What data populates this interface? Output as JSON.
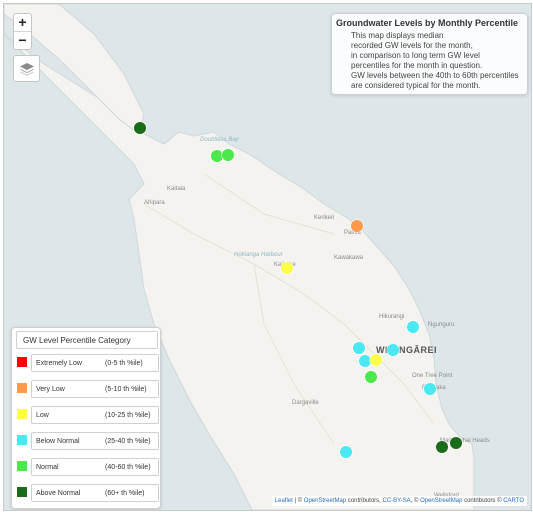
{
  "zoom": {
    "in_label": "+",
    "out_label": "−"
  },
  "layers_icon": "layers-icon",
  "info_box": {
    "title": "Groundwater Levels by Monthly Percentile",
    "lines": [
      "This map displays median",
      "recorded GW levels for the month,",
      "in comparison to long term GW level",
      "percentiles for the month in question.",
      "GW levels between the 40th to 60th percentiles",
      "are considered typical for the month."
    ]
  },
  "legend": {
    "title": "GW Level Percentile Category",
    "items": [
      {
        "name": "Extremely Low",
        "range": "(0-5 th %ile)",
        "color": "#ff0000"
      },
      {
        "name": "Very Low",
        "range": "(5-10 th %ile)",
        "color": "#ff9a4a"
      },
      {
        "name": "Low",
        "range": "(10-25 th %ile)",
        "color": "#ffff4a"
      },
      {
        "name": "Below Normal",
        "range": "(25-40 th %ile)",
        "color": "#4ae8f0"
      },
      {
        "name": "Normal",
        "range": "(40-60 th %ile)",
        "color": "#4ae84a"
      },
      {
        "name": "Above Normal",
        "range": "(60+ th %ile)",
        "color": "#1a6b1a"
      }
    ]
  },
  "places": {
    "doubtless_bay": "Doubtless Bay",
    "kaitaia": "Kaitaia",
    "ahipara": "Ahipara",
    "kerikeri": "Kerikeri",
    "paihia": "Paihia",
    "kawakawa": "Kawakawa",
    "hokianga_harbour": "Hokianga Harbour",
    "kaikohe": "Kaikohe",
    "hikurangi": "Hikurangi",
    "ngunguru": "Ngunguru",
    "whangarei": "WHANGĀREI",
    "one_tree_point": "One Tree Point",
    "ruakaka": "Ruakaka",
    "dargaville": "Dargaville",
    "mangawhai": "Mangawhai Heads",
    "wellsford": "Wellsford"
  },
  "sites": [
    {
      "category": "Above Normal",
      "color": "#1a6b1a"
    },
    {
      "category": "Normal",
      "color": "#4ae84a"
    },
    {
      "category": "Normal",
      "color": "#4ae84a"
    },
    {
      "category": "Very Low",
      "color": "#ff9a4a"
    },
    {
      "category": "Low",
      "color": "#ffff4a"
    },
    {
      "category": "Below Normal",
      "color": "#4ae8f0"
    },
    {
      "category": "Below Normal",
      "color": "#4ae8f0"
    },
    {
      "category": "Below Normal",
      "color": "#4ae8f0"
    },
    {
      "category": "Below Normal",
      "color": "#4ae8f0"
    },
    {
      "category": "Low",
      "color": "#ffff4a"
    },
    {
      "category": "Normal",
      "color": "#4ae84a"
    },
    {
      "category": "Below Normal",
      "color": "#4ae8f0"
    },
    {
      "category": "Above Normal",
      "color": "#1a6b1a"
    },
    {
      "category": "Above Normal",
      "color": "#1a6b1a"
    },
    {
      "category": "Below Normal",
      "color": "#4ae8f0"
    }
  ],
  "attribution": {
    "leaflet": "Leaflet",
    "sep1": " | © ",
    "osm1": "OpenStreetMap",
    "contributors1": " contributors, ",
    "ccbysa": "CC-BY-SA",
    "sep2": ", © ",
    "osm2": "OpenStreetMap",
    "contributors2": " contributors © ",
    "carto": "CARTO"
  }
}
